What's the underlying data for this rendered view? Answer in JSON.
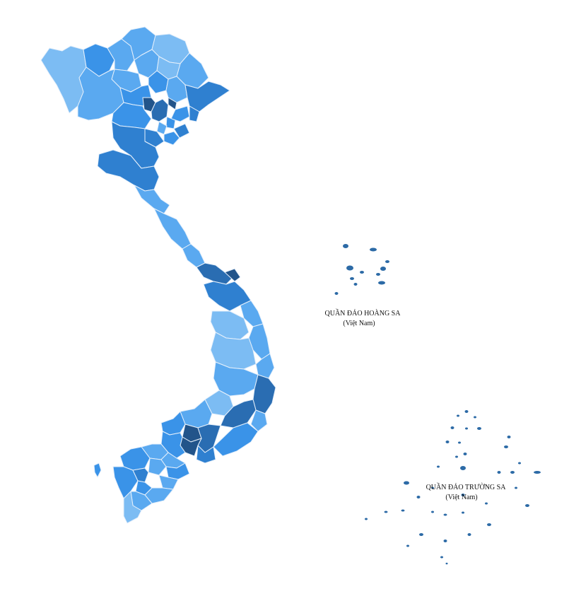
{
  "colors": {
    "very_light": "#7cbcf3",
    "light": "#5aa9f0",
    "medium": "#3a93e8",
    "medium_dark": "#2f80d0",
    "dark": "#2a6db2",
    "darkest": "#22548a",
    "island": "#2c6aa6",
    "border": "#e6f0fb"
  },
  "archipelagos": {
    "hoang_sa": {
      "name": "QUẦN ĐẢO HOÀNG SA",
      "country": "(Việt Nam)"
    },
    "truong_sa": {
      "name": "QUẦN ĐẢO TRƯỜNG SA",
      "country": "(Việt Nam)"
    }
  }
}
